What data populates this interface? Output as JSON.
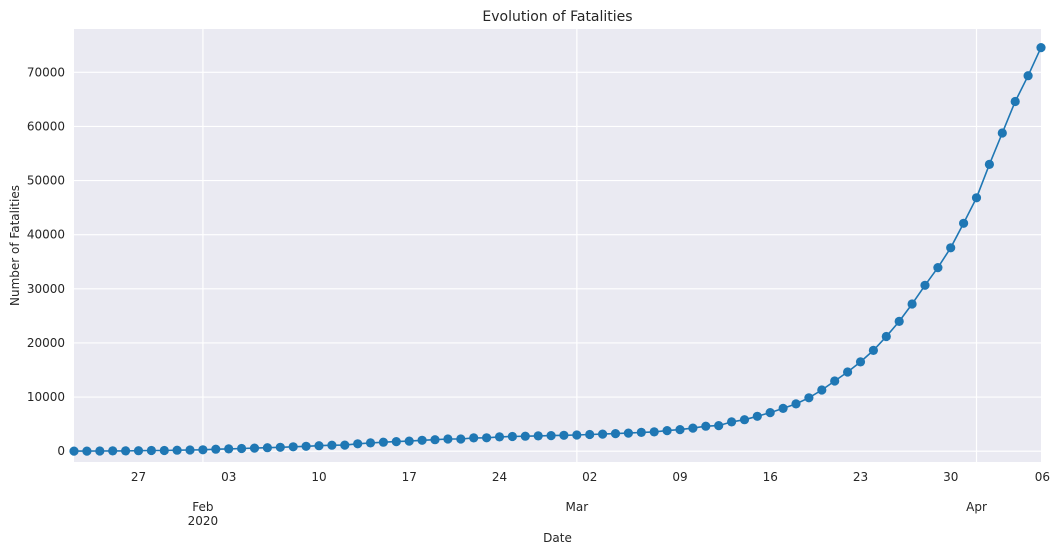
{
  "chart_data": {
    "type": "line",
    "title": "Evolution of Fatalities",
    "xlabel": "Date",
    "ylabel": "Number of Fatalities",
    "xlim": [
      "2020-01-22",
      "2020-04-06"
    ],
    "ylim": [
      -2000,
      78000
    ],
    "grid": true,
    "line_color": "#1f77b4",
    "background_color": "#eaeaf2",
    "x_minor_ticks": [
      {
        "date": "2020-01-27",
        "label": "27"
      },
      {
        "date": "2020-02-03",
        "label": "03"
      },
      {
        "date": "2020-02-10",
        "label": "10"
      },
      {
        "date": "2020-02-17",
        "label": "17"
      },
      {
        "date": "2020-02-24",
        "label": "24"
      },
      {
        "date": "2020-03-02",
        "label": "02"
      },
      {
        "date": "2020-03-09",
        "label": "09"
      },
      {
        "date": "2020-03-16",
        "label": "16"
      },
      {
        "date": "2020-03-23",
        "label": "23"
      },
      {
        "date": "2020-03-30",
        "label": "30"
      },
      {
        "date": "2020-04-06",
        "label": "06"
      }
    ],
    "x_major_ticks": [
      {
        "date": "2020-02-01",
        "label": "Feb",
        "sublabel": "2020"
      },
      {
        "date": "2020-03-01",
        "label": "Mar",
        "sublabel": ""
      },
      {
        "date": "2020-04-01",
        "label": "Apr",
        "sublabel": ""
      }
    ],
    "y_ticks": [
      0,
      10000,
      20000,
      30000,
      40000,
      50000,
      60000,
      70000
    ],
    "series": [
      {
        "x": [
          "2020-01-22",
          "2020-01-23",
          "2020-01-24",
          "2020-01-25",
          "2020-01-26",
          "2020-01-27",
          "2020-01-28",
          "2020-01-29",
          "2020-01-30",
          "2020-01-31",
          "2020-02-01",
          "2020-02-02",
          "2020-02-03",
          "2020-02-04",
          "2020-02-05",
          "2020-02-06",
          "2020-02-07",
          "2020-02-08",
          "2020-02-09",
          "2020-02-10",
          "2020-02-11",
          "2020-02-12",
          "2020-02-13",
          "2020-02-14",
          "2020-02-15",
          "2020-02-16",
          "2020-02-17",
          "2020-02-18",
          "2020-02-19",
          "2020-02-20",
          "2020-02-21",
          "2020-02-22",
          "2020-02-23",
          "2020-02-24",
          "2020-02-25",
          "2020-02-26",
          "2020-02-27",
          "2020-02-28",
          "2020-02-29",
          "2020-03-01",
          "2020-03-02",
          "2020-03-03",
          "2020-03-04",
          "2020-03-05",
          "2020-03-06",
          "2020-03-07",
          "2020-03-08",
          "2020-03-09",
          "2020-03-10",
          "2020-03-11",
          "2020-03-12",
          "2020-03-13",
          "2020-03-14",
          "2020-03-15",
          "2020-03-16",
          "2020-03-17",
          "2020-03-18",
          "2020-03-19",
          "2020-03-20",
          "2020-03-21",
          "2020-03-22",
          "2020-03-23",
          "2020-03-24",
          "2020-03-25",
          "2020-03-26",
          "2020-03-27",
          "2020-03-28",
          "2020-03-29",
          "2020-03-30",
          "2020-03-31",
          "2020-04-01",
          "2020-04-02",
          "2020-04-03",
          "2020-04-04",
          "2020-04-05",
          "2020-04-06"
        ],
        "y": [
          17,
          18,
          26,
          42,
          56,
          82,
          131,
          133,
          171,
          213,
          259,
          362,
          426,
          492,
          564,
          634,
          719,
          806,
          906,
          1013,
          1113,
          1118,
          1371,
          1523,
          1666,
          1770,
          1868,
          2007,
          2122,
          2247,
          2251,
          2458,
          2469,
          2629,
          2708,
          2770,
          2814,
          2872,
          2941,
          2996,
          3085,
          3160,
          3254,
          3348,
          3460,
          3558,
          3802,
          3988,
          4262,
          4615,
          4720,
          5404,
          5819,
          6440,
          7126,
          7905,
          8733,
          9867,
          11299,
          12973,
          14623,
          16497,
          18615,
          21181,
          23970,
          27198,
          30652,
          33925,
          37582,
          42107,
          46809,
          52983,
          58787,
          64606,
          69374,
          74565
        ]
      }
    ]
  }
}
